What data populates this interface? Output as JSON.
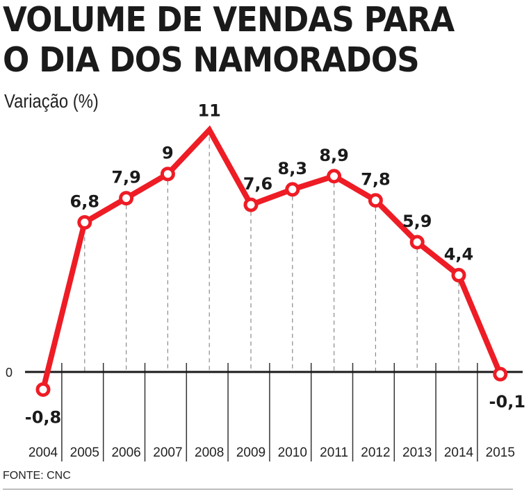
{
  "chart_data": {
    "type": "line",
    "title": "VOLUME DE VENDAS PARA O DIA DOS NAMORADOS",
    "title_lines": [
      "VOLUME DE VENDAS PARA",
      "O DIA DOS NAMORADOS"
    ],
    "subtitle": "Variação (%)",
    "xlabel": "",
    "ylabel": "Variação (%)",
    "categories": [
      "2004",
      "2005",
      "2006",
      "2007",
      "2008",
      "2009",
      "2010",
      "2011",
      "2012",
      "2013",
      "2014",
      "2015"
    ],
    "series": [
      {
        "name": "Variação (%)",
        "values": [
          -0.8,
          6.8,
          7.9,
          9,
          11,
          7.6,
          8.3,
          8.9,
          7.8,
          5.9,
          4.4,
          -0.1
        ],
        "labels": [
          "-0,8",
          "6,8",
          "7,9",
          "9",
          "11",
          "7,6",
          "8,3",
          "8,9",
          "7,8",
          "5,9",
          "4,4",
          "-0,1"
        ],
        "color": "#ee1c25"
      }
    ],
    "y_ticks": [
      {
        "value": 0,
        "label": "0"
      }
    ],
    "ylim": [
      -0.8,
      11
    ],
    "grid": false,
    "legend": "none",
    "source": "FONTE: CNC"
  }
}
